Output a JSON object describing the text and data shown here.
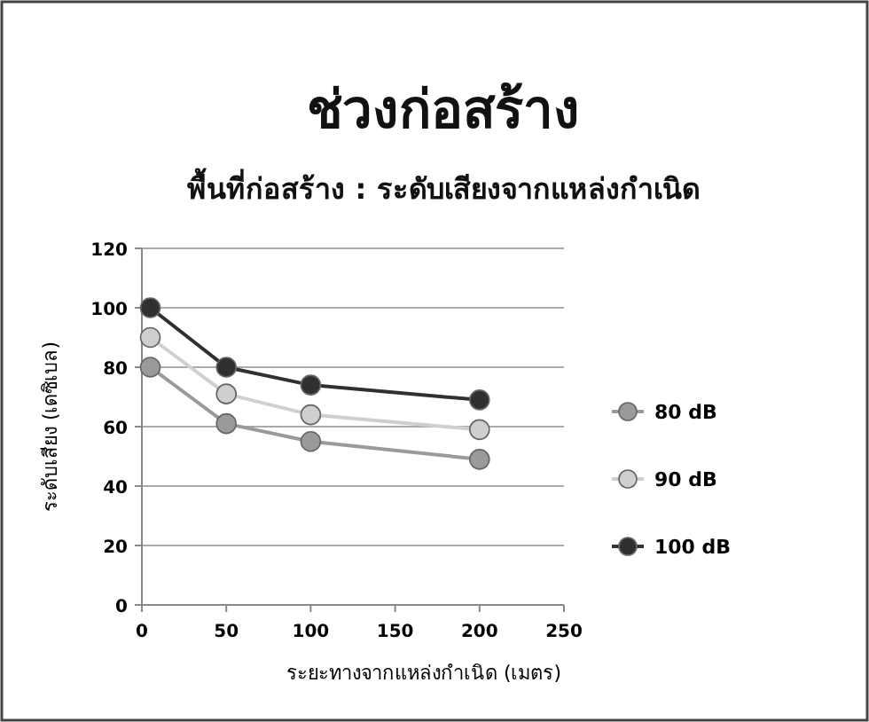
{
  "chart_data": {
    "type": "line",
    "title": "ช่วงก่อสร้าง",
    "subtitle": "พื้นที่ก่อสร้าง : ระดับเสียงจากแหล่งกำเนิด",
    "xlabel": "ระยะทางจากแหล่งกำเนิด (เมตร)",
    "ylabel": "ระดับเสียง (เดซิเบล)",
    "x": [
      5,
      50,
      100,
      200
    ],
    "series": [
      {
        "name": "80 dB",
        "color": "#9a9a9a",
        "values": [
          80,
          61,
          55,
          49
        ]
      },
      {
        "name": "90 dB",
        "color": "#cfcfcf",
        "values": [
          90,
          71,
          64,
          59
        ]
      },
      {
        "name": "100 dB",
        "color": "#303030",
        "values": [
          100,
          80,
          74,
          69
        ]
      }
    ],
    "xlim": [
      0,
      250
    ],
    "xticks": [
      0,
      50,
      100,
      150,
      200,
      250
    ],
    "ylim": [
      0,
      120
    ],
    "yticks": [
      0,
      20,
      40,
      60,
      80,
      100,
      120
    ],
    "grid": "y",
    "legend": "right",
    "marker": "circle"
  }
}
